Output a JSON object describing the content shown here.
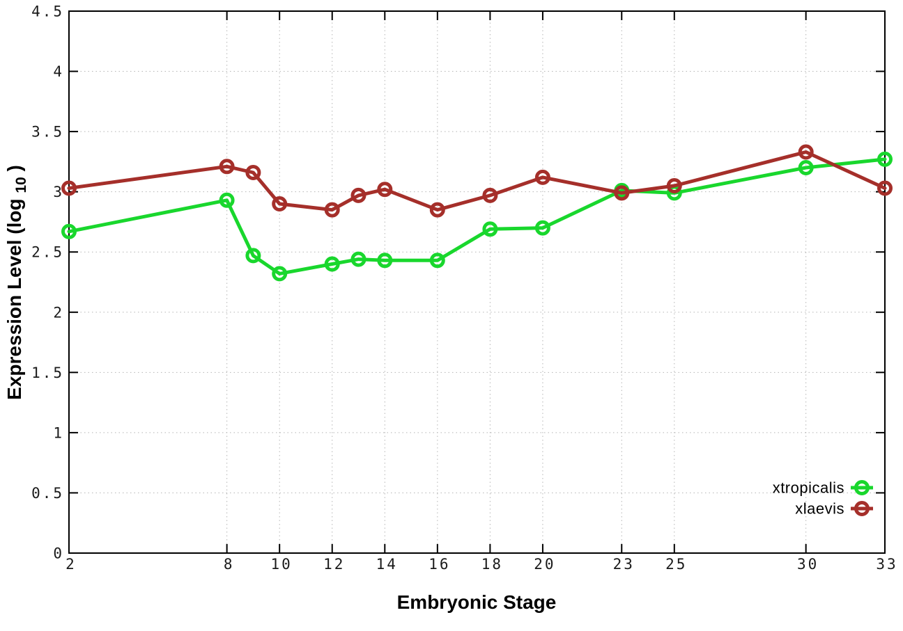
{
  "figure": {
    "background": "#ffffff",
    "border_color": "#000000",
    "grid_color": "#b4b4b4",
    "tick_color": "#000000"
  },
  "chart_data": {
    "type": "line",
    "title": "",
    "xlabel": "Embryonic Stage",
    "ylabel": "Expression Level (log10)",
    "ylabel_parts": {
      "main": "Expression Level (log",
      "sub": "10",
      "close": ")"
    },
    "xlim": [
      2,
      33
    ],
    "ylim": [
      0,
      4.5
    ],
    "grid": true,
    "legend_position": "bottom-right",
    "xtick_values": [
      2,
      8,
      10,
      12,
      14,
      16,
      18,
      20,
      23,
      25,
      30,
      33
    ],
    "xtick_labels": [
      "2",
      "8",
      "10",
      "12",
      "14",
      "16",
      "18",
      "20",
      "23",
      "25",
      "30",
      "33"
    ],
    "ytick_values": [
      0,
      0.5,
      1,
      1.5,
      2,
      2.5,
      3,
      3.5,
      4,
      4.5
    ],
    "ytick_labels": [
      "0",
      "0.5",
      "1",
      "1.5",
      "2",
      "2.5",
      "3",
      "3.5",
      "4",
      "4.5"
    ],
    "x": [
      2,
      8,
      9,
      10,
      12,
      13,
      14,
      16,
      18,
      20,
      23,
      25,
      30,
      33
    ],
    "series": [
      {
        "name": "xtropicalis",
        "color": "#19d72d",
        "marker": "open-circle",
        "values": [
          2.67,
          2.93,
          2.47,
          2.32,
          2.4,
          2.44,
          2.43,
          2.43,
          2.69,
          2.7,
          3.01,
          2.99,
          3.2,
          3.27
        ]
      },
      {
        "name": "xlaevis",
        "color": "#a52f2a",
        "marker": "open-circle",
        "values": [
          3.03,
          3.21,
          3.16,
          2.9,
          2.85,
          2.97,
          3.02,
          2.85,
          2.97,
          3.12,
          2.99,
          3.05,
          3.33,
          3.03
        ]
      }
    ]
  }
}
